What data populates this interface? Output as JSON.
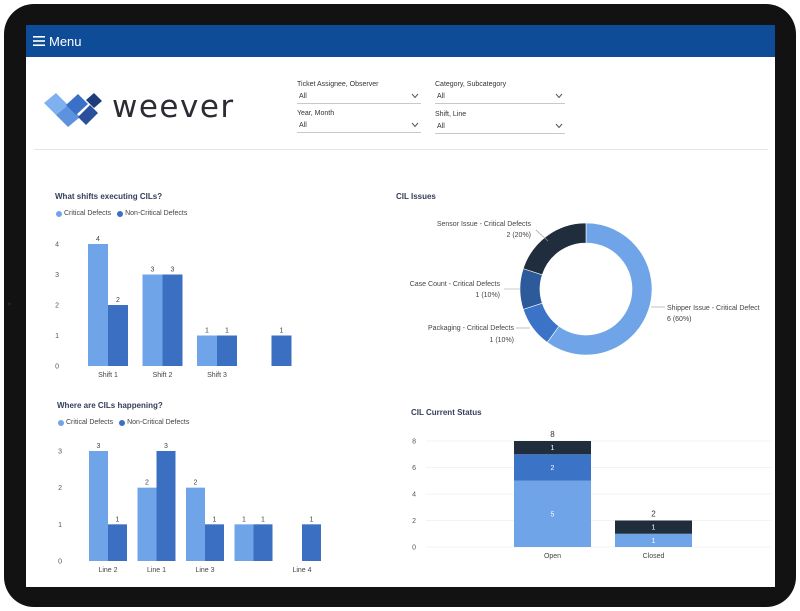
{
  "header": {
    "menu_label": "Menu"
  },
  "brand": {
    "name": "weever"
  },
  "filters": [
    {
      "label": "Ticket Assignee, Observer",
      "value": "All"
    },
    {
      "label": "Category, Subcategory",
      "value": "All"
    },
    {
      "label": "Year, Month",
      "value": "All"
    },
    {
      "label": "Shift, Line",
      "value": "All"
    }
  ],
  "colors": {
    "topbar": "#0f4c97",
    "critical": "#6fa4e8",
    "non_critical": "#3b6fc1",
    "dark": "#1f2d3d",
    "mid": "#3b73c7"
  },
  "chart_data": [
    {
      "id": "shifts",
      "type": "bar",
      "title": "What shifts executing CILs?",
      "categories": [
        "Shift 1",
        "Shift 2",
        "Shift 3",
        ""
      ],
      "series": [
        {
          "name": "Critical Defects",
          "values": [
            4,
            3,
            1,
            null
          ]
        },
        {
          "name": "Non-Critical Defects",
          "values": [
            2,
            3,
            1,
            1
          ]
        }
      ],
      "ylim": [
        0,
        4
      ],
      "yticks": [
        "0",
        "1",
        "2",
        "3",
        "4"
      ],
      "legend": "top-left"
    },
    {
      "id": "issues",
      "type": "pie",
      "title": "CIL Issues",
      "slices": [
        {
          "name": "Shipper Issue - Critical Defect",
          "value": 6,
          "detail": "6 (60%)"
        },
        {
          "name": "Packaging - Critical Defects",
          "value": 1,
          "detail": "1 (10%)"
        },
        {
          "name": "Case Count - Critical Defects",
          "value": 1,
          "detail": "1 (10%)"
        },
        {
          "name": "Sensor Issue - Critical Defects",
          "value": 2,
          "detail": "2 (20%)"
        }
      ]
    },
    {
      "id": "lines",
      "type": "bar",
      "title": "Where are CILs happening?",
      "categories": [
        "Line 2",
        "Line 1",
        "Line 3",
        "",
        "Line 4"
      ],
      "series": [
        {
          "name": "Critical Defects",
          "values": [
            3,
            2,
            2,
            1,
            null
          ]
        },
        {
          "name": "Non-Critical Defects",
          "values": [
            1,
            3,
            1,
            1,
            1
          ]
        }
      ],
      "ylim": [
        0,
        3
      ],
      "yticks": [
        "0",
        "1",
        "2",
        "3"
      ],
      "legend": "top-left"
    },
    {
      "id": "status",
      "type": "bar",
      "stacked": true,
      "title": "CIL Current Status",
      "categories": [
        "Open",
        "Closed"
      ],
      "series": [
        {
          "values": [
            5,
            1
          ]
        },
        {
          "values": [
            2,
            null
          ]
        },
        {
          "values": [
            1,
            1
          ]
        }
      ],
      "totals": [
        "8",
        "2"
      ],
      "ylim": [
        0,
        8
      ],
      "yticks": [
        "0",
        "2",
        "4",
        "6",
        "8"
      ]
    }
  ]
}
